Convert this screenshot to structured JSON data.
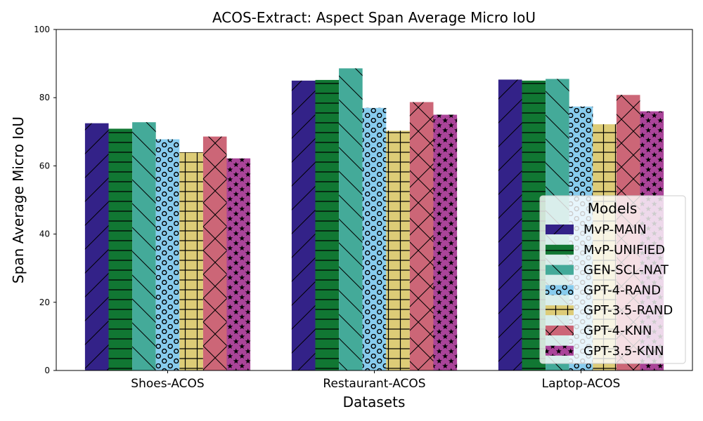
{
  "chart_data": {
    "type": "bar",
    "title": "ACOS-Extract: Aspect Span Average Micro IoU",
    "xlabel": "Datasets",
    "ylabel": "Span Average Micro IoU",
    "ylim": [
      0,
      100
    ],
    "yticks": [
      0,
      20,
      40,
      60,
      80,
      100
    ],
    "grid": false,
    "legend_title": "Models",
    "legend_position": "lower-right",
    "categories": [
      "Shoes-ACOS",
      "Restaurant-ACOS",
      "Laptop-ACOS"
    ],
    "series": [
      {
        "name": "MvP-MAIN",
        "color": "#332288",
        "hatch": "diagonal-forward",
        "values": [
          72.5,
          85.0,
          85.3
        ]
      },
      {
        "name": "MvP-UNIFIED",
        "color": "#117733",
        "hatch": "horizontal",
        "values": [
          70.9,
          85.2,
          85.0
        ]
      },
      {
        "name": "GEN-SCL-NAT",
        "color": "#44AA99",
        "hatch": "diagonal-back",
        "values": [
          72.8,
          88.6,
          85.5
        ]
      },
      {
        "name": "GPT-4-RAND",
        "color": "#88CCEE",
        "hatch": "circles",
        "values": [
          67.8,
          77.0,
          77.4
        ]
      },
      {
        "name": "GPT-3.5-RAND",
        "color": "#DDCC77",
        "hatch": "grid",
        "values": [
          64.0,
          70.3,
          72.2
        ]
      },
      {
        "name": "GPT-4-KNN",
        "color": "#CC6677",
        "hatch": "crosshatch",
        "values": [
          68.6,
          78.7,
          80.8
        ]
      },
      {
        "name": "GPT-3.5-KNN",
        "color": "#AA4499",
        "hatch": "stars",
        "values": [
          62.2,
          75.0,
          76.0
        ]
      }
    ]
  }
}
